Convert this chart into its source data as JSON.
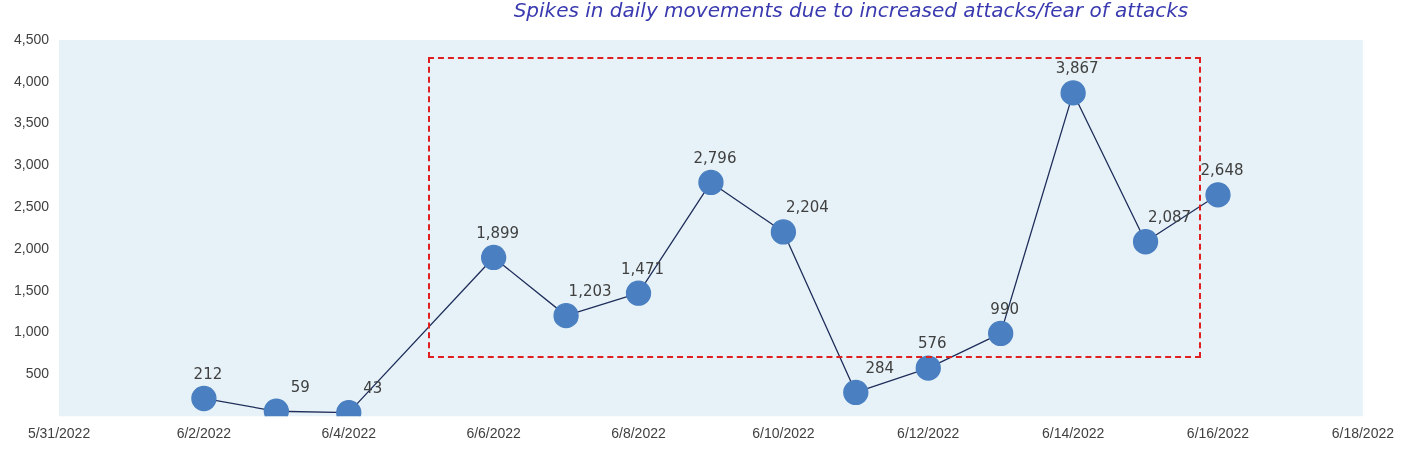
{
  "chart_data": {
    "type": "line",
    "annotations": [
      "Spikes in daily movements due to increased attacks/fear of attacks"
    ],
    "x": [
      "2022-06-02",
      "2022-06-03",
      "2022-06-04",
      "2022-06-06",
      "2022-06-07",
      "2022-06-08",
      "2022-06-09",
      "2022-06-10",
      "2022-06-11",
      "2022-06-12",
      "2022-06-13",
      "2022-06-14",
      "2022-06-15",
      "2022-06-16"
    ],
    "series": [
      {
        "color": "#4a7fc1",
        "values": [
          212,
          59,
          43,
          1899,
          1203,
          1471,
          2796,
          2204,
          284,
          576,
          990,
          3867,
          2087,
          2648
        ],
        "value_labels": [
          "212",
          "59",
          "43",
          "1,899",
          "1,203",
          "1,471",
          "2,796",
          "2,204",
          "284",
          "576",
          "990",
          "3,867",
          "2,087",
          "2,648"
        ]
      }
    ],
    "xlim": [
      "2022-05-31",
      "2022-06-18"
    ],
    "xticks": [
      {
        "value": "2022-05-31",
        "label": "5/31/2022"
      },
      {
        "value": "2022-06-02",
        "label": "6/2/2022"
      },
      {
        "value": "2022-06-04",
        "label": "6/4/2022"
      },
      {
        "value": "2022-06-06",
        "label": "6/6/2022"
      },
      {
        "value": "2022-06-08",
        "label": "6/8/2022"
      },
      {
        "value": "2022-06-10",
        "label": "6/10/2022"
      },
      {
        "value": "2022-06-12",
        "label": "6/12/2022"
      },
      {
        "value": "2022-06-14",
        "label": "6/14/2022"
      },
      {
        "value": "2022-06-16",
        "label": "6/16/2022"
      },
      {
        "value": "2022-06-18",
        "label": "6/18/2022"
      }
    ],
    "ylim": [
      0,
      4500
    ],
    "yticks": [
      {
        "value": 0,
        "label": null
      },
      {
        "value": 500,
        "label": "500"
      },
      {
        "value": 1000,
        "label": "1,000"
      },
      {
        "value": 1500,
        "label": "1,500"
      },
      {
        "value": 2000,
        "label": "2,000"
      },
      {
        "value": 2500,
        "label": "2,500"
      },
      {
        "value": 3000,
        "label": "3,000"
      },
      {
        "value": 3500,
        "label": "3,500"
      },
      {
        "value": 4000,
        "label": "4,000"
      },
      {
        "value": 4500,
        "label": "4,500"
      }
    ],
    "grid": false,
    "legend": false,
    "marker": "circle",
    "line_style": "solid"
  }
}
